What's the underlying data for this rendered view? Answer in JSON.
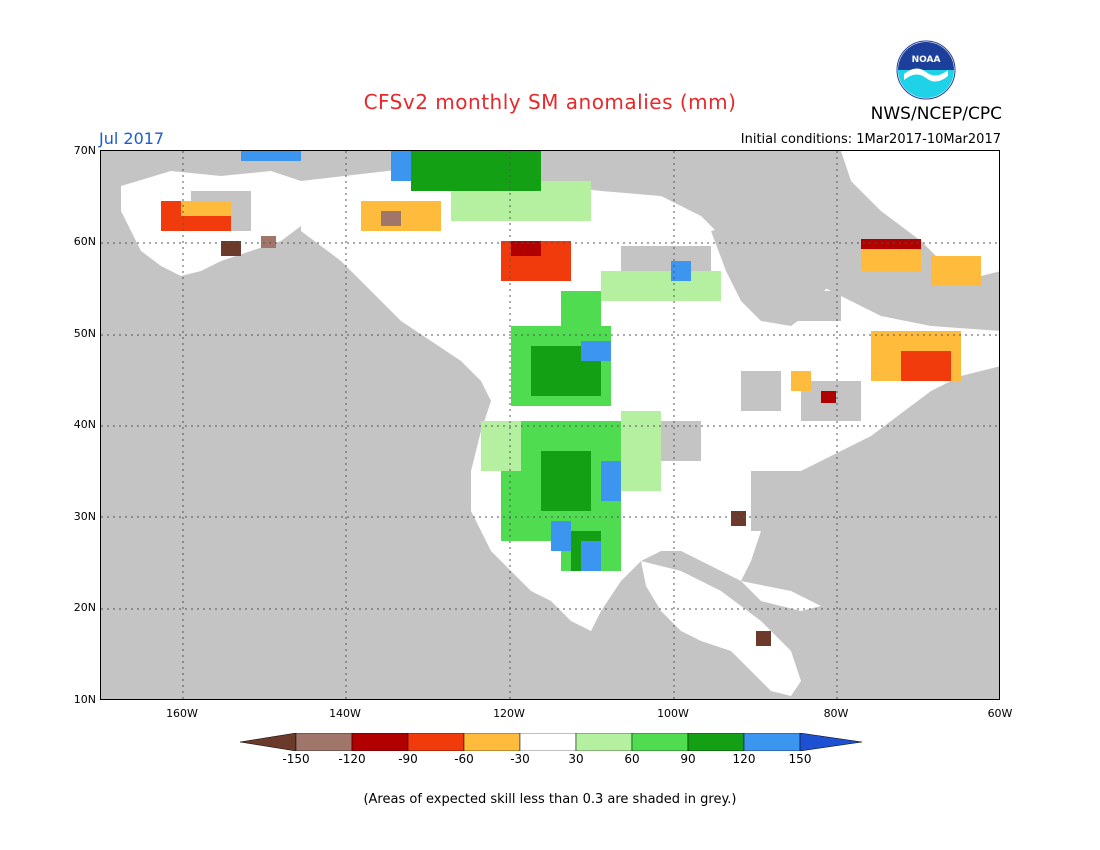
{
  "header": {
    "title": "CFSv2 monthly SM anomalies (mm)",
    "agency": "NWS/NCEP/CPC",
    "logo_text": "NOAA",
    "month": "Jul 2017",
    "initial_conditions": "Initial conditions: 1Mar2017-10Mar2017"
  },
  "map": {
    "lat_labels": [
      "70N",
      "60N",
      "50N",
      "40N",
      "30N",
      "20N",
      "10N"
    ],
    "lon_labels": [
      "160W",
      "140W",
      "120W",
      "100W",
      "80W",
      "60W"
    ]
  },
  "colorbar": {
    "labels": [
      "-150",
      "-120",
      "-90",
      "-60",
      "-30",
      "30",
      "60",
      "90",
      "120",
      "150"
    ],
    "colors": [
      "#6b3a2a",
      "#a0766a",
      "#b00000",
      "#f23b0c",
      "#ffbb3c",
      "#ffffff",
      "#b4f0a0",
      "#50dc50",
      "#14a014",
      "#3c96f0",
      "#1e50d2"
    ]
  },
  "footer": {
    "note": "(Areas of expected skill less than 0.3 are shaded in grey.)"
  }
}
